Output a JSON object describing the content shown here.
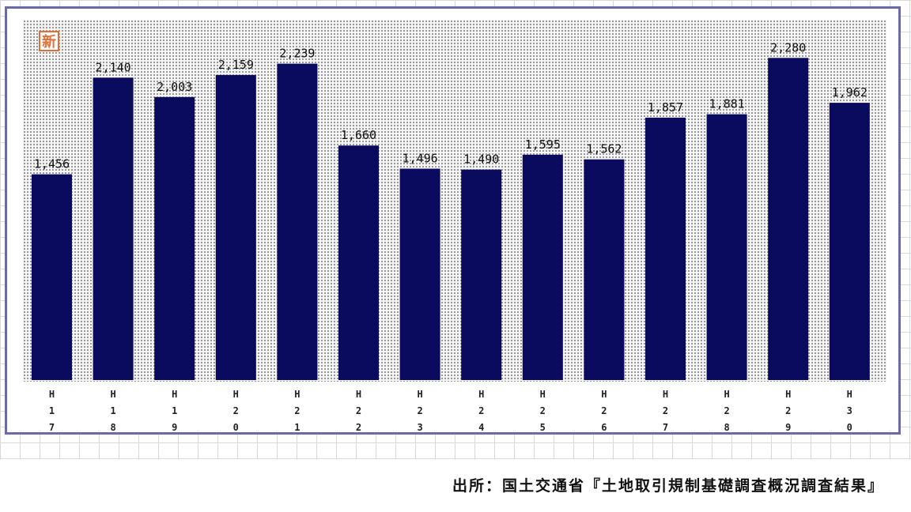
{
  "badge": {
    "label": "新",
    "color": "#e0703a"
  },
  "source": "出所：国土交通省『土地取引規制基礎調査概況調査結果』",
  "chart_data": {
    "type": "bar",
    "categories": [
      "H17",
      "H18",
      "H19",
      "H20",
      "H21",
      "H22",
      "H23",
      "H24",
      "H25",
      "H26",
      "H27",
      "H28",
      "H29",
      "H30"
    ],
    "values": [
      1456,
      2140,
      2003,
      2159,
      2239,
      1660,
      1496,
      1490,
      1595,
      1562,
      1857,
      1881,
      2280,
      1962
    ],
    "value_labels": [
      "1,456",
      "2,140",
      "2,003",
      "2,159",
      "2,239",
      "1,660",
      "1,496",
      "1,490",
      "1,595",
      "1,562",
      "1,857",
      "1,881",
      "2,280",
      "1,962"
    ],
    "bar_color": "#0a0a5e",
    "title": "",
    "xlabel": "",
    "ylabel": "",
    "ylim": [
      0,
      2550
    ],
    "grid": false,
    "legend": "none"
  }
}
